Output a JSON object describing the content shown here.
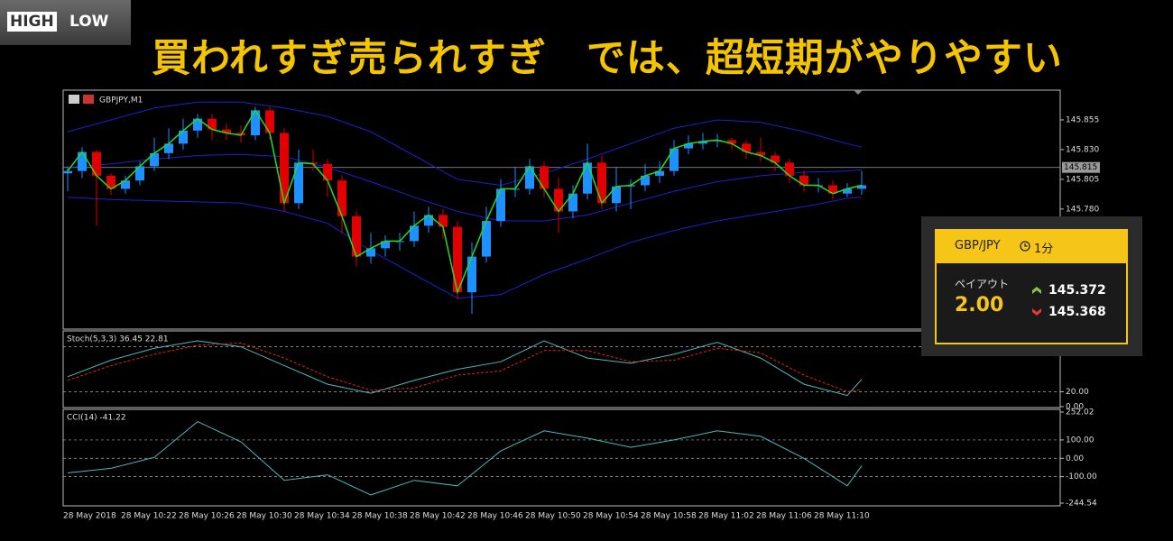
{
  "header": {
    "logo_high": "HIGH",
    "logo_low": "LOW",
    "title": "買われすぎ売られすぎ　では、超短期がやりやすい"
  },
  "chart_data": [
    {
      "type": "candlestick",
      "title": "GBPJPY,M1",
      "up_color": "#1e90ff",
      "down_color": "#e00000",
      "line_color": "#22dd22",
      "categories": [
        "28 May 2018",
        null,
        null,
        null,
        "28 May 10:22",
        null,
        null,
        null,
        "28 May 10:26",
        null,
        null,
        null,
        "28 May 10:30",
        null,
        null,
        null,
        "28 May 10:34",
        null,
        null,
        null,
        "28 May 10:38",
        null,
        null,
        null,
        "28 May 10:42",
        null,
        null,
        null,
        "28 May 10:46",
        null,
        null,
        null,
        "28 May 10:50",
        null,
        null,
        null,
        "28 May 10:54",
        null,
        null,
        null,
        "28 May 10:58",
        null,
        null,
        null,
        "28 May 11:02",
        null,
        null,
        null,
        "28 May 11:06",
        null,
        null,
        null,
        "28 May 11:10",
        null,
        null,
        null
      ],
      "candles": [
        [
          145.81,
          145.816,
          145.795,
          145.812
        ],
        [
          145.812,
          145.832,
          145.806,
          145.828
        ],
        [
          145.828,
          145.83,
          145.766,
          145.808
        ],
        [
          145.808,
          145.81,
          145.792,
          145.797
        ],
        [
          145.797,
          145.808,
          145.793,
          145.804
        ],
        [
          145.804,
          145.82,
          145.8,
          145.816
        ],
        [
          145.816,
          145.84,
          145.812,
          145.827
        ],
        [
          145.827,
          145.848,
          145.822,
          145.835
        ],
        [
          145.835,
          145.856,
          145.83,
          145.846
        ],
        [
          145.846,
          145.86,
          145.84,
          145.856
        ],
        [
          145.856,
          145.86,
          145.838,
          145.847
        ],
        [
          145.847,
          145.852,
          145.838,
          145.844
        ],
        [
          145.844,
          145.85,
          145.836,
          145.842
        ],
        [
          145.842,
          145.866,
          145.838,
          145.863
        ],
        [
          145.863,
          145.866,
          145.838,
          145.844
        ],
        [
          145.844,
          145.848,
          145.778,
          145.785
        ],
        [
          145.785,
          145.83,
          145.78,
          145.819
        ],
        [
          145.819,
          145.83,
          145.812,
          145.818
        ],
        [
          145.818,
          145.822,
          145.79,
          145.804
        ],
        [
          145.804,
          145.808,
          145.76,
          145.774
        ],
        [
          145.774,
          145.778,
          145.732,
          145.74
        ],
        [
          145.74,
          145.76,
          145.734,
          145.747
        ],
        [
          145.747,
          145.758,
          145.74,
          145.753
        ],
        [
          145.753,
          145.76,
          145.745,
          145.753
        ],
        [
          145.753,
          145.778,
          145.748,
          145.766
        ],
        [
          145.766,
          145.782,
          145.76,
          145.775
        ],
        [
          145.775,
          145.78,
          145.755,
          145.765
        ],
        [
          145.765,
          145.77,
          145.704,
          145.71
        ],
        [
          145.71,
          145.752,
          145.692,
          145.74
        ],
        [
          145.74,
          145.782,
          145.735,
          145.77
        ],
        [
          145.77,
          145.805,
          145.765,
          145.797
        ],
        [
          145.797,
          145.815,
          145.79,
          145.797
        ],
        [
          145.797,
          145.822,
          145.792,
          145.816
        ],
        [
          145.816,
          145.82,
          145.79,
          145.797
        ],
        [
          145.797,
          145.806,
          145.76,
          145.778
        ],
        [
          145.778,
          145.8,
          145.772,
          145.793
        ],
        [
          145.793,
          145.835,
          145.788,
          145.819
        ],
        [
          145.819,
          145.825,
          145.78,
          145.785
        ],
        [
          145.785,
          145.815,
          145.778,
          145.799
        ],
        [
          145.799,
          145.805,
          145.78,
          145.8
        ],
        [
          145.8,
          145.818,
          145.795,
          145.808
        ],
        [
          145.808,
          145.82,
          145.802,
          145.812
        ],
        [
          145.812,
          145.838,
          145.808,
          145.831
        ],
        [
          145.831,
          145.842,
          145.826,
          145.835
        ],
        [
          145.835,
          145.844,
          145.83,
          145.837
        ],
        [
          145.837,
          145.843,
          145.832,
          145.838
        ],
        [
          145.838,
          145.84,
          145.83,
          145.835
        ],
        [
          145.835,
          145.838,
          145.822,
          145.828
        ],
        [
          145.828,
          145.84,
          145.82,
          145.825
        ],
        [
          145.825,
          145.828,
          145.812,
          145.819
        ],
        [
          145.819,
          145.822,
          145.802,
          145.808
        ],
        [
          145.808,
          145.812,
          145.795,
          145.8
        ],
        [
          145.8,
          145.806,
          145.794,
          145.8
        ],
        [
          145.8,
          145.804,
          145.788,
          145.793
        ],
        [
          145.793,
          145.802,
          145.79,
          145.797
        ],
        [
          145.797,
          145.812,
          145.792,
          145.8
        ]
      ],
      "bollinger": {
        "color": "#1f1fd0",
        "x": [
          0,
          3,
          6,
          9,
          12,
          15,
          18,
          21,
          24,
          27,
          30,
          33,
          36,
          39,
          42,
          45,
          48,
          51,
          54,
          55
        ],
        "upper": [
          145.845,
          145.855,
          145.865,
          145.87,
          145.87,
          145.865,
          145.858,
          145.845,
          145.825,
          145.805,
          145.8,
          145.81,
          145.822,
          145.835,
          145.848,
          145.855,
          145.853,
          145.845,
          145.835,
          145.832
        ],
        "middle": [
          145.815,
          145.818,
          145.822,
          145.825,
          145.826,
          145.824,
          145.815,
          145.803,
          145.79,
          145.778,
          145.77,
          145.77,
          145.775,
          145.785,
          145.795,
          145.803,
          145.808,
          145.811,
          145.812,
          145.813
        ],
        "lower": [
          145.79,
          145.788,
          145.787,
          145.786,
          145.785,
          145.778,
          145.768,
          145.745,
          145.725,
          145.705,
          145.708,
          145.725,
          145.738,
          145.752,
          145.762,
          145.77,
          145.776,
          145.782,
          145.789,
          145.79
        ]
      },
      "ylim": [
        145.679,
        145.88
      ],
      "yticks": [
        145.855,
        {
          "value": 145.83,
          "label": "145.830"
        },
        145.805,
        {
          "value": 145.78,
          "label": "145.780"
        }
      ],
      "current": 145.815
    },
    {
      "type": "line",
      "title": "Stoch(5,3,3) 36.45 22.81",
      "x": [
        0,
        3,
        6,
        9,
        12,
        15,
        18,
        21,
        24,
        27,
        30,
        33,
        36,
        39,
        42,
        45,
        48,
        51,
        54,
        55
      ],
      "series": [
        {
          "color": "#4fb8b8",
          "values": [
            40,
            62,
            78,
            88,
            80,
            55,
            30,
            18,
            35,
            50,
            60,
            88,
            65,
            58,
            70,
            86,
            65,
            30,
            15,
            36.45
          ]
        },
        {
          "color": "#e02020",
          "dash": true,
          "values": [
            35,
            55,
            70,
            82,
            85,
            65,
            40,
            22,
            25,
            42,
            48,
            75,
            75,
            60,
            62,
            78,
            72,
            42,
            20,
            22.81
          ]
        }
      ],
      "ylim": [
        0,
        100
      ],
      "yticks": [
        {
          "value": 20,
          "label": "20.00"
        },
        {
          "value": 0,
          "label": "0.00"
        }
      ],
      "levels": [
        80,
        20
      ]
    },
    {
      "type": "line",
      "title": "CCI(14) -41.22",
      "x": [
        0,
        3,
        6,
        9,
        12,
        15,
        18,
        21,
        24,
        27,
        30,
        33,
        36,
        39,
        42,
        45,
        48,
        51,
        54,
        55
      ],
      "series": [
        {
          "color": "#4fb8b8",
          "values": [
            -80,
            -55,
            5,
            200,
            90,
            -120,
            -90,
            -200,
            -120,
            -150,
            40,
            150,
            110,
            60,
            100,
            150,
            120,
            0,
            -150,
            -41.22
          ]
        }
      ],
      "ylim": [
        -244.54,
        252.02
      ],
      "yticks": [
        252.02,
        {
          "value": 100,
          "label": "100.00"
        },
        {
          "value": 0,
          "label": "0.00"
        },
        {
          "value": -100,
          "label": "-100.00"
        },
        -244.54
      ],
      "levels": [
        100,
        0,
        -100
      ]
    }
  ],
  "widget": {
    "pair": "GBP/JPY",
    "period": "1分",
    "payout_label": "ペイアウト",
    "payout": "2.00",
    "high_price": "145.372",
    "low_price": "145.368"
  }
}
